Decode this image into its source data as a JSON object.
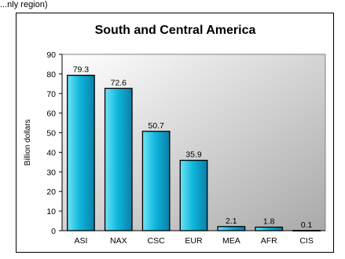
{
  "header_fragment": "...nly region)",
  "chart_data": {
    "type": "bar",
    "title": "South and Central America",
    "xlabel": "",
    "ylabel": "Billion dollars",
    "categories": [
      "ASI",
      "NAX",
      "CSC",
      "EUR",
      "MEA",
      "AFR",
      "CIS"
    ],
    "values": [
      79.3,
      72.6,
      50.7,
      35.9,
      2.1,
      1.8,
      0.1
    ],
    "data_labels": [
      "79.3",
      "72.6",
      "50.7",
      "35.9",
      "2.1",
      "1.8",
      "0.1"
    ],
    "ylim": [
      0,
      90
    ],
    "yticks": [
      0,
      10,
      20,
      30,
      40,
      50,
      60,
      70,
      80,
      90
    ],
    "grid": false,
    "legend": "none",
    "colors": {
      "bar_top": "#6fe4f5",
      "bar_mid": "#10b8de",
      "bar_bottom": "#0a7fa8",
      "plot_bg_light": "#ffffff",
      "plot_bg_dark": "#a9a9a9",
      "bar_edge": "#000000"
    }
  }
}
